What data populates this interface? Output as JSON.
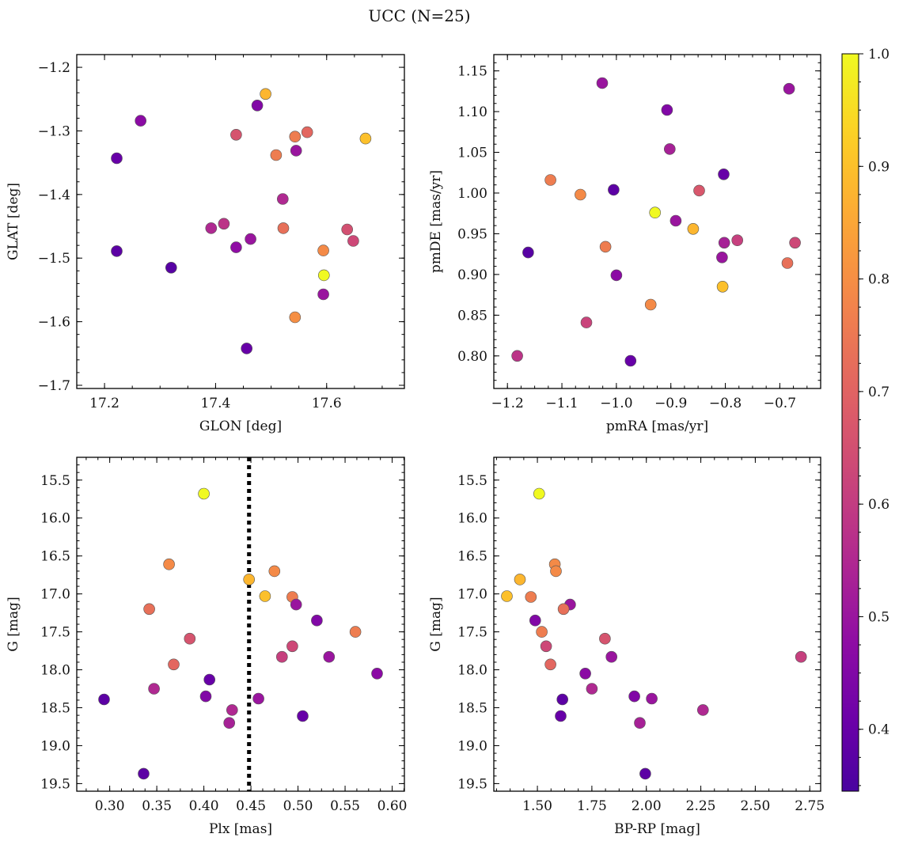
{
  "figure": {
    "title": "UCC (N=25)"
  },
  "chart_data": [
    {
      "type": "scatter",
      "xlabel": "GLON [deg]",
      "ylabel": "GLAT [deg]",
      "xlim": [
        17.15,
        17.74
      ],
      "ylim": [
        -1.705,
        -1.18
      ],
      "xticks": [
        17.2,
        17.4,
        17.6
      ],
      "xticklabels": [
        "17.2",
        "17.4",
        "17.6"
      ],
      "yticks": [
        -1.2,
        -1.3,
        -1.4,
        -1.5,
        -1.6,
        -1.7
      ],
      "yticklabels": [
        "−1.2",
        "−1.3",
        "−1.4",
        "−1.5",
        "−1.6",
        "−1.7"
      ],
      "yinvert": false,
      "points": [
        {
          "x": 17.49,
          "y": -1.242,
          "c": 0.88
        },
        {
          "x": 17.67,
          "y": -1.312,
          "c": 0.9
        },
        {
          "x": 17.475,
          "y": -1.26,
          "c": 0.45
        },
        {
          "x": 17.265,
          "y": -1.284,
          "c": 0.47
        },
        {
          "x": 17.222,
          "y": -1.343,
          "c": 0.4
        },
        {
          "x": 17.437,
          "y": -1.306,
          "c": 0.66
        },
        {
          "x": 17.509,
          "y": -1.338,
          "c": 0.76
        },
        {
          "x": 17.543,
          "y": -1.309,
          "c": 0.76
        },
        {
          "x": 17.565,
          "y": -1.302,
          "c": 0.71
        },
        {
          "x": 17.545,
          "y": -1.331,
          "c": 0.5
        },
        {
          "x": 17.521,
          "y": -1.407,
          "c": 0.55
        },
        {
          "x": 17.415,
          "y": -1.446,
          "c": 0.58
        },
        {
          "x": 17.392,
          "y": -1.453,
          "c": 0.55
        },
        {
          "x": 17.522,
          "y": -1.453,
          "c": 0.73
        },
        {
          "x": 17.637,
          "y": -1.455,
          "c": 0.65
        },
        {
          "x": 17.648,
          "y": -1.473,
          "c": 0.63
        },
        {
          "x": 17.463,
          "y": -1.47,
          "c": 0.5
        },
        {
          "x": 17.437,
          "y": -1.483,
          "c": 0.48
        },
        {
          "x": 17.222,
          "y": -1.489,
          "c": 0.38
        },
        {
          "x": 17.594,
          "y": -1.488,
          "c": 0.79
        },
        {
          "x": 17.32,
          "y": -1.515,
          "c": 0.37
        },
        {
          "x": 17.595,
          "y": -1.527,
          "c": 1.0
        },
        {
          "x": 17.594,
          "y": -1.557,
          "c": 0.5
        },
        {
          "x": 17.543,
          "y": -1.593,
          "c": 0.8
        },
        {
          "x": 17.456,
          "y": -1.642,
          "c": 0.4
        }
      ]
    },
    {
      "type": "scatter",
      "xlabel": "pmRA [mas/yr]",
      "ylabel": "pmDE [mas/yr]",
      "xlim": [
        -1.225,
        -0.625
      ],
      "ylim": [
        0.76,
        1.17
      ],
      "xticks": [
        -1.2,
        -1.1,
        -1.0,
        -0.9,
        -0.8,
        -0.7
      ],
      "xticklabels": [
        "−1.2",
        "−1.1",
        "−1.0",
        "−0.9",
        "−0.8",
        "−0.7"
      ],
      "yticks": [
        0.8,
        0.85,
        0.9,
        0.95,
        1.0,
        1.05,
        1.1,
        1.15
      ],
      "yticklabels": [
        "0.80",
        "0.85",
        "0.90",
        "0.95",
        "1.00",
        "1.05",
        "1.10",
        "1.15"
      ],
      "yinvert": false,
      "points": [
        {
          "x": -1.026,
          "y": 1.135,
          "c": 0.5
        },
        {
          "x": -0.683,
          "y": 1.128,
          "c": 0.5
        },
        {
          "x": -0.907,
          "y": 1.102,
          "c": 0.45
        },
        {
          "x": -0.902,
          "y": 1.054,
          "c": 0.53
        },
        {
          "x": -0.803,
          "y": 1.023,
          "c": 0.4
        },
        {
          "x": -1.121,
          "y": 1.016,
          "c": 0.76
        },
        {
          "x": -1.066,
          "y": 0.998,
          "c": 0.79
        },
        {
          "x": -1.005,
          "y": 1.004,
          "c": 0.38
        },
        {
          "x": -0.848,
          "y": 1.003,
          "c": 0.67
        },
        {
          "x": -0.929,
          "y": 0.976,
          "c": 1.0
        },
        {
          "x": -0.891,
          "y": 0.966,
          "c": 0.5
        },
        {
          "x": -0.859,
          "y": 0.956,
          "c": 0.88
        },
        {
          "x": -0.802,
          "y": 0.939,
          "c": 0.53
        },
        {
          "x": -0.778,
          "y": 0.942,
          "c": 0.61
        },
        {
          "x": -0.672,
          "y": 0.939,
          "c": 0.63
        },
        {
          "x": -1.02,
          "y": 0.934,
          "c": 0.76
        },
        {
          "x": -1.162,
          "y": 0.927,
          "c": 0.37
        },
        {
          "x": -0.806,
          "y": 0.921,
          "c": 0.5
        },
        {
          "x": -0.686,
          "y": 0.914,
          "c": 0.73
        },
        {
          "x": -1.0,
          "y": 0.899,
          "c": 0.47
        },
        {
          "x": -0.805,
          "y": 0.885,
          "c": 0.9
        },
        {
          "x": -0.937,
          "y": 0.863,
          "c": 0.79
        },
        {
          "x": -1.055,
          "y": 0.841,
          "c": 0.62
        },
        {
          "x": -1.182,
          "y": 0.8,
          "c": 0.58
        },
        {
          "x": -0.974,
          "y": 0.794,
          "c": 0.4
        }
      ]
    },
    {
      "type": "scatter",
      "xlabel": "Plx [mas]",
      "ylabel": "G [mag]",
      "xlim": [
        0.265,
        0.613
      ],
      "ylim": [
        15.2,
        19.6
      ],
      "xticks": [
        0.3,
        0.35,
        0.4,
        0.45,
        0.5,
        0.55,
        0.6
      ],
      "xticklabels": [
        "0.30",
        "0.35",
        "0.40",
        "0.45",
        "0.50",
        "0.55",
        "0.60"
      ],
      "yticks": [
        15.5,
        16.0,
        16.5,
        17.0,
        17.5,
        18.0,
        18.5,
        19.0,
        19.5
      ],
      "yticklabels": [
        "15.5",
        "16.0",
        "16.5",
        "17.0",
        "17.5",
        "18.0",
        "18.5",
        "19.0",
        "19.5"
      ],
      "yinvert": true,
      "vline": {
        "x": 0.448,
        "style": "dotted",
        "color": "#000000"
      },
      "points": [
        {
          "x": 0.4,
          "y": 15.68,
          "c": 1.0
        },
        {
          "x": 0.363,
          "y": 16.61,
          "c": 0.79
        },
        {
          "x": 0.475,
          "y": 16.7,
          "c": 0.79
        },
        {
          "x": 0.448,
          "y": 16.81,
          "c": 0.88
        },
        {
          "x": 0.465,
          "y": 17.03,
          "c": 0.9
        },
        {
          "x": 0.494,
          "y": 17.04,
          "c": 0.76
        },
        {
          "x": 0.498,
          "y": 17.14,
          "c": 0.5
        },
        {
          "x": 0.342,
          "y": 17.2,
          "c": 0.73
        },
        {
          "x": 0.52,
          "y": 17.35,
          "c": 0.45
        },
        {
          "x": 0.561,
          "y": 17.5,
          "c": 0.76
        },
        {
          "x": 0.385,
          "y": 17.59,
          "c": 0.66
        },
        {
          "x": 0.494,
          "y": 17.69,
          "c": 0.63
        },
        {
          "x": 0.533,
          "y": 17.83,
          "c": 0.5
        },
        {
          "x": 0.483,
          "y": 17.83,
          "c": 0.61
        },
        {
          "x": 0.368,
          "y": 17.93,
          "c": 0.71
        },
        {
          "x": 0.584,
          "y": 18.05,
          "c": 0.47
        },
        {
          "x": 0.406,
          "y": 18.13,
          "c": 0.4
        },
        {
          "x": 0.347,
          "y": 18.25,
          "c": 0.55
        },
        {
          "x": 0.402,
          "y": 18.35,
          "c": 0.45
        },
        {
          "x": 0.458,
          "y": 18.38,
          "c": 0.5
        },
        {
          "x": 0.294,
          "y": 18.39,
          "c": 0.38
        },
        {
          "x": 0.43,
          "y": 18.53,
          "c": 0.55
        },
        {
          "x": 0.505,
          "y": 18.61,
          "c": 0.4
        },
        {
          "x": 0.427,
          "y": 18.7,
          "c": 0.53
        },
        {
          "x": 0.336,
          "y": 19.37,
          "c": 0.38
        }
      ]
    },
    {
      "type": "scatter",
      "xlabel": "BP-RP [mag]",
      "ylabel": "G [mag]",
      "xlim": [
        1.3,
        2.8
      ],
      "ylim": [
        15.2,
        19.6
      ],
      "xticks": [
        1.5,
        1.75,
        2.0,
        2.25,
        2.5,
        2.75
      ],
      "xticklabels": [
        "1.50",
        "1.75",
        "2.00",
        "2.25",
        "2.50",
        "2.75"
      ],
      "yticks": [
        15.5,
        16.0,
        16.5,
        17.0,
        17.5,
        18.0,
        18.5,
        19.0,
        19.5
      ],
      "yticklabels": [
        "15.5",
        "16.0",
        "16.5",
        "17.0",
        "17.5",
        "18.0",
        "18.5",
        "19.0",
        "19.5"
      ],
      "yinvert": true,
      "points": [
        {
          "x": 1.508,
          "y": 15.68,
          "c": 1.0
        },
        {
          "x": 1.58,
          "y": 16.61,
          "c": 0.79
        },
        {
          "x": 1.585,
          "y": 16.7,
          "c": 0.79
        },
        {
          "x": 1.42,
          "y": 16.81,
          "c": 0.88
        },
        {
          "x": 1.36,
          "y": 17.03,
          "c": 0.9
        },
        {
          "x": 1.47,
          "y": 17.04,
          "c": 0.76
        },
        {
          "x": 1.65,
          "y": 17.14,
          "c": 0.5
        },
        {
          "x": 1.62,
          "y": 17.2,
          "c": 0.73
        },
        {
          "x": 1.49,
          "y": 17.35,
          "c": 0.45
        },
        {
          "x": 1.52,
          "y": 17.5,
          "c": 0.76
        },
        {
          "x": 1.81,
          "y": 17.59,
          "c": 0.66
        },
        {
          "x": 1.54,
          "y": 17.69,
          "c": 0.63
        },
        {
          "x": 1.84,
          "y": 17.83,
          "c": 0.5
        },
        {
          "x": 2.71,
          "y": 17.83,
          "c": 0.61
        },
        {
          "x": 1.56,
          "y": 17.93,
          "c": 0.71
        },
        {
          "x": 1.72,
          "y": 18.05,
          "c": 0.47
        },
        {
          "x": 1.75,
          "y": 18.25,
          "c": 0.55
        },
        {
          "x": 1.945,
          "y": 18.35,
          "c": 0.45
        },
        {
          "x": 2.025,
          "y": 18.38,
          "c": 0.5
        },
        {
          "x": 1.615,
          "y": 18.39,
          "c": 0.38
        },
        {
          "x": 2.26,
          "y": 18.53,
          "c": 0.55
        },
        {
          "x": 1.607,
          "y": 18.61,
          "c": 0.4
        },
        {
          "x": 1.97,
          "y": 18.7,
          "c": 0.53
        },
        {
          "x": 1.995,
          "y": 19.37,
          "c": 0.38
        }
      ]
    }
  ],
  "colorbar": {
    "colormap": "plasma",
    "range": [
      0.345,
      1.0
    ],
    "ticks": [
      0.4,
      0.5,
      0.6,
      0.7,
      0.8,
      0.9,
      1.0
    ],
    "ticklabels": [
      "0.4",
      "0.5",
      "0.6",
      "0.7",
      "0.8",
      "0.9",
      "1.0"
    ]
  }
}
